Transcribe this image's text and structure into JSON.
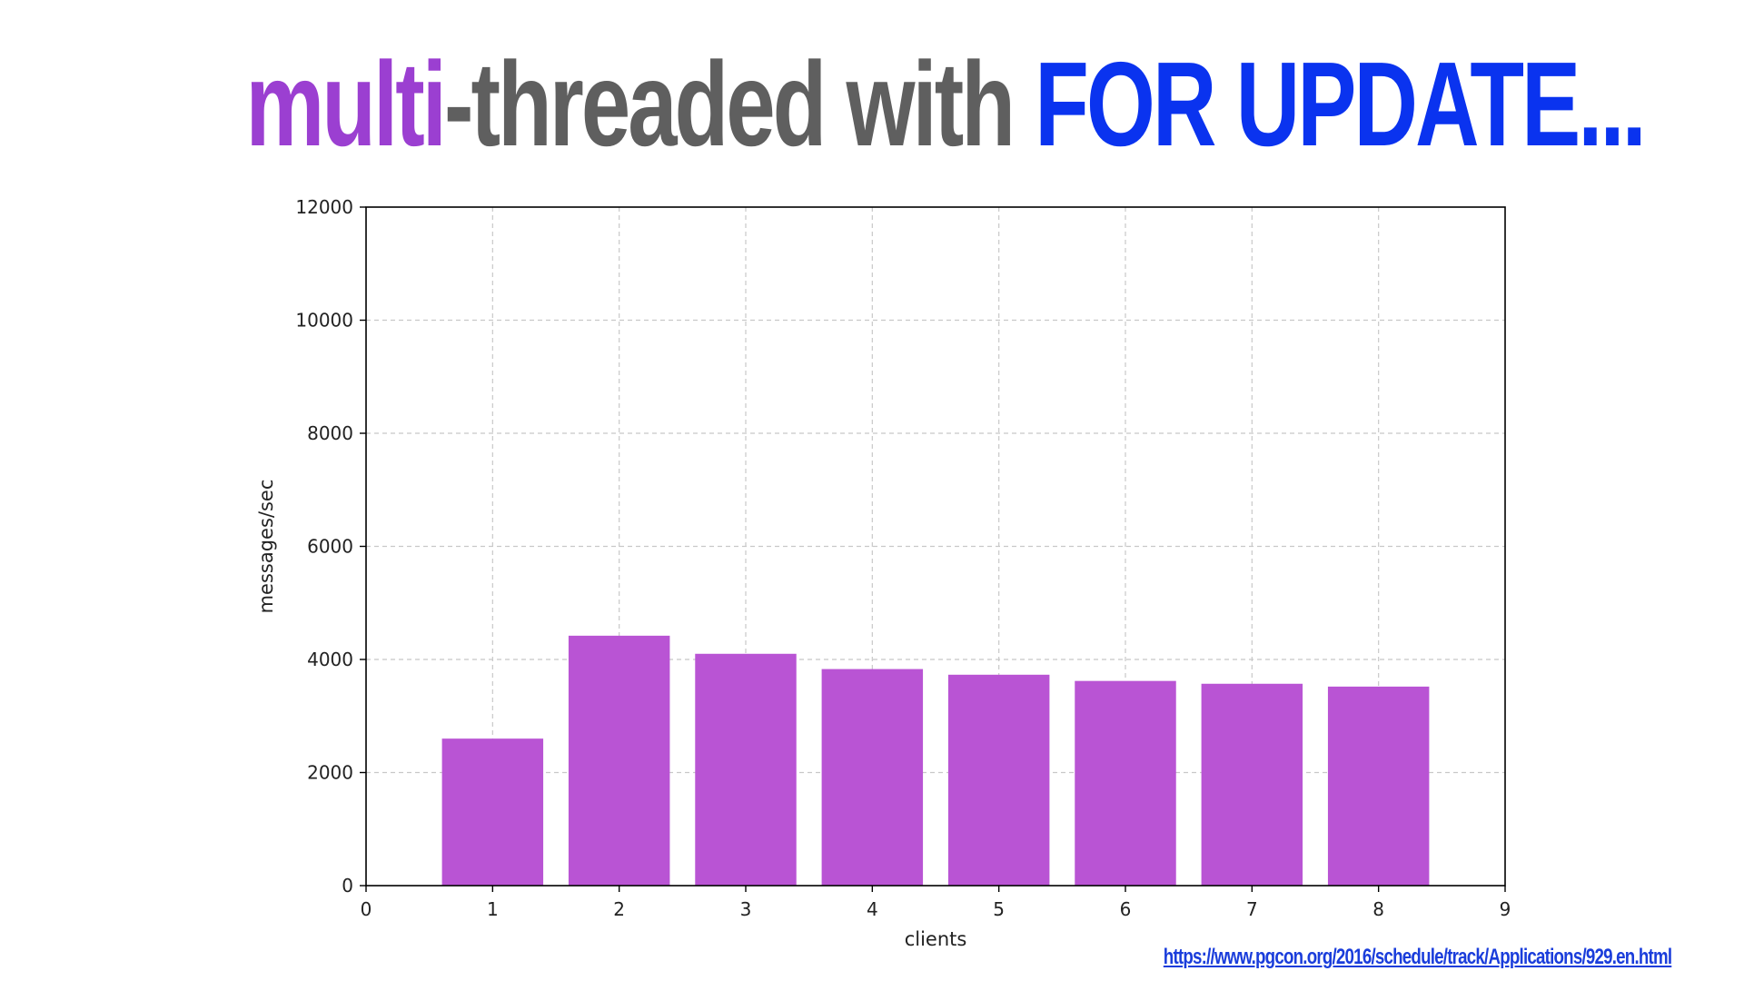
{
  "title": {
    "part1": "multi",
    "part2": "-threaded with ",
    "part3": "FOR UPDATE...",
    "color_part1": "#9b3fd1",
    "color_part2": "#5f5f5f",
    "color_part3": "#0a33ef"
  },
  "source_link": "https://www.pgcon.org/2016/schedule/track/Applications/929.en.html",
  "chart_data": {
    "type": "bar",
    "x": [
      1,
      2,
      3,
      4,
      5,
      6,
      7,
      8
    ],
    "values": [
      2600,
      4420,
      4100,
      3830,
      3730,
      3620,
      3570,
      3520
    ],
    "xlabel": "clients",
    "ylabel": "messages/sec",
    "xlim": [
      0,
      9
    ],
    "ylim": [
      0,
      12000
    ],
    "xticks": [
      0,
      1,
      2,
      3,
      4,
      5,
      6,
      7,
      8,
      9
    ],
    "yticks": [
      0,
      2000,
      4000,
      6000,
      8000,
      10000,
      12000
    ],
    "grid": true,
    "bar_color": "#b954d4"
  }
}
